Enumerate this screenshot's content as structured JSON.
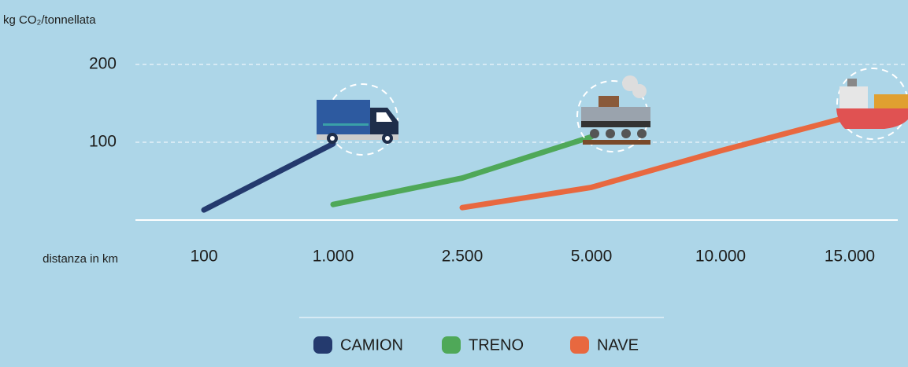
{
  "chart_data": {
    "type": "line",
    "y_label": "kg CO₂/tonnellata",
    "x_label": "distanza in km",
    "categories": [
      "100",
      "1.000",
      "2.500",
      "5.000",
      "10.000",
      "15.000"
    ],
    "series": [
      {
        "name": "CAMION",
        "color": "#243a6e",
        "values": [
          13,
          98,
          null,
          null,
          null,
          null
        ]
      },
      {
        "name": "TRENO",
        "color": "#4fa858",
        "values": [
          null,
          20,
          54,
          107,
          null,
          null
        ]
      },
      {
        "name": "NAVE",
        "color": "#e8683f",
        "values": [
          null,
          null,
          16,
          42,
          89,
          133
        ]
      }
    ],
    "ylim": [
      0,
      200
    ],
    "yticks": [
      100,
      200
    ],
    "grid": true
  }
}
